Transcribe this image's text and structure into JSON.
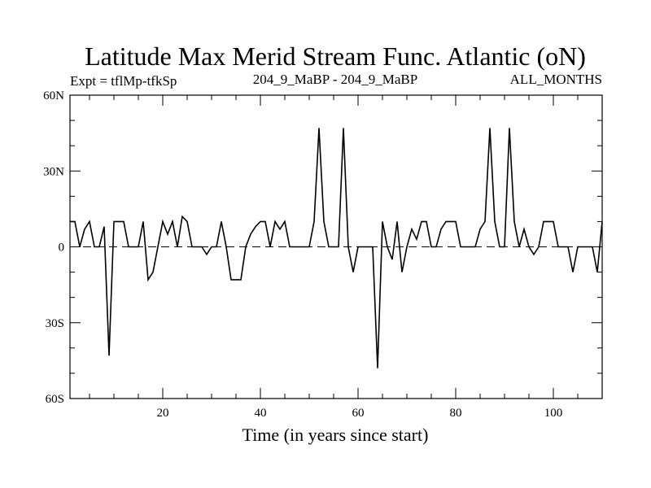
{
  "chart_data": {
    "type": "line",
    "title": "Latitude Max Merid Stream Func. Atlantic (oN)",
    "subtitle_left": "Expt = tflMp-tfkSp",
    "subtitle_center": "204_9_MaBP - 204_9_MaBP",
    "subtitle_right": "ALL_MONTHS",
    "xlabel": "Time (in years since start)",
    "ylabel": "",
    "xlim": [
      1,
      110
    ],
    "ylim": [
      -60,
      60
    ],
    "x_ticks": [
      {
        "value": 20,
        "label": "20"
      },
      {
        "value": 40,
        "label": "40"
      },
      {
        "value": 60,
        "label": "60"
      },
      {
        "value": 80,
        "label": "80"
      },
      {
        "value": 100,
        "label": "100"
      }
    ],
    "y_ticks": [
      {
        "value": 60,
        "label": "60N"
      },
      {
        "value": 30,
        "label": "30N"
      },
      {
        "value": 0,
        "label": "0"
      },
      {
        "value": -30,
        "label": "30S"
      },
      {
        "value": -60,
        "label": "60S"
      }
    ],
    "reference_line": {
      "value": 0,
      "style": "dashed"
    },
    "series": [
      {
        "name": "Latitude Max Merid Stream Func",
        "color": "#000000",
        "x": [
          1,
          2,
          3,
          4,
          5,
          6,
          7,
          8,
          9,
          10,
          11,
          12,
          13,
          14,
          15,
          16,
          17,
          18,
          19,
          20,
          21,
          22,
          23,
          24,
          25,
          26,
          27,
          28,
          29,
          30,
          31,
          32,
          33,
          34,
          35,
          36,
          37,
          38,
          39,
          40,
          41,
          42,
          43,
          44,
          45,
          46,
          47,
          48,
          49,
          50,
          51,
          52,
          53,
          54,
          55,
          56,
          57,
          58,
          59,
          60,
          61,
          62,
          63,
          64,
          65,
          66,
          67,
          68,
          69,
          70,
          71,
          72,
          73,
          74,
          75,
          76,
          77,
          78,
          79,
          80,
          81,
          82,
          83,
          84,
          85,
          86,
          87,
          88,
          89,
          90,
          91,
          92,
          93,
          94,
          95,
          96,
          97,
          98,
          99,
          100,
          101,
          102,
          103,
          104,
          105,
          106,
          107,
          108,
          109,
          110
        ],
        "values": [
          10,
          10,
          0,
          7,
          10,
          0,
          0,
          8,
          -43,
          10,
          10,
          10,
          0,
          0,
          0,
          10,
          -13,
          -10,
          0,
          10,
          5,
          10,
          0,
          12,
          10,
          0,
          0,
          0,
          -3,
          0,
          0,
          10,
          0,
          -13,
          -13,
          -13,
          0,
          5,
          8,
          10,
          10,
          0,
          10,
          7,
          10,
          0,
          0,
          0,
          0,
          0,
          10,
          47,
          10,
          0,
          0,
          0,
          47,
          0,
          -10,
          0,
          0,
          0,
          0,
          -48,
          10,
          0,
          -5,
          10,
          -10,
          0,
          7,
          3,
          10,
          10,
          0,
          0,
          7,
          10,
          10,
          10,
          0,
          0,
          0,
          0,
          7,
          10,
          47,
          10,
          0,
          0,
          47,
          10,
          0,
          7,
          0,
          -3,
          0,
          10,
          10,
          10,
          0,
          0,
          0,
          -10,
          0,
          0,
          0,
          0,
          -10,
          10
        ]
      }
    ]
  }
}
